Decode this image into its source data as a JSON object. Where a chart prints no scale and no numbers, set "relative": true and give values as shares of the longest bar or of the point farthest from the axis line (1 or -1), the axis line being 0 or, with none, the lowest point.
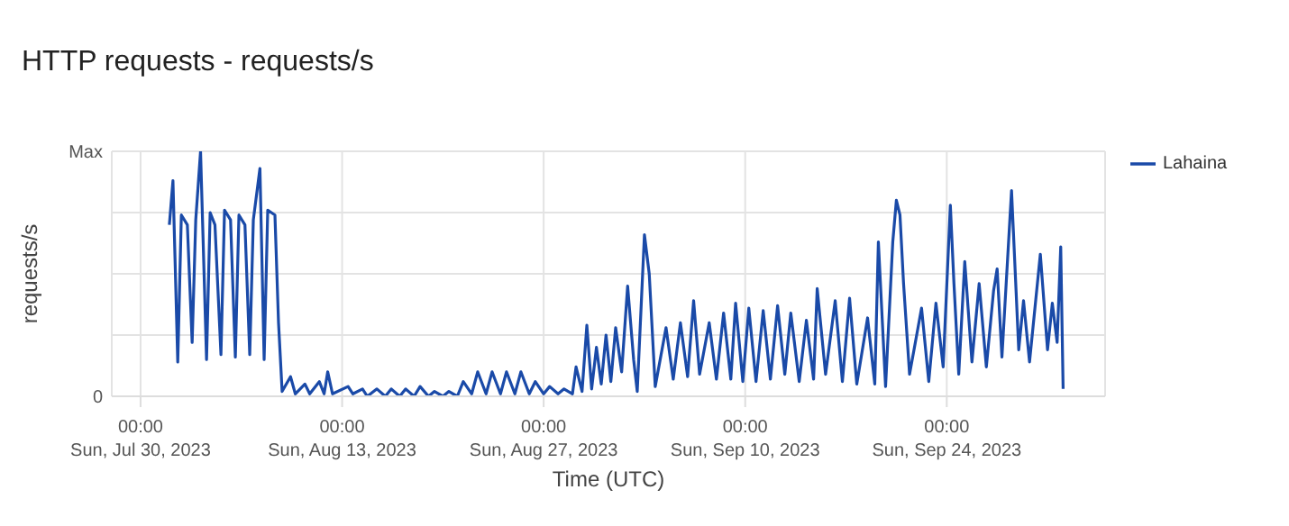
{
  "chart_data": {
    "type": "line",
    "title": "HTTP requests - requests/s",
    "xlabel": "Time (UTC)",
    "ylabel": "requests/s",
    "x": [
      "2023-08-01T00:00",
      "2023-08-01T06:00",
      "2023-08-01T14:00",
      "2023-08-01T20:00",
      "2023-08-02T06:00",
      "2023-08-02T14:00",
      "2023-08-02T20:00",
      "2023-08-03T04:00",
      "2023-08-03T14:00",
      "2023-08-03T20:00",
      "2023-08-04T04:00",
      "2023-08-04T14:00",
      "2023-08-04T20:00",
      "2023-08-05T06:00",
      "2023-08-05T14:00",
      "2023-08-05T20:00",
      "2023-08-06T06:00",
      "2023-08-06T14:00",
      "2023-08-06T20:00",
      "2023-08-07T07:00",
      "2023-08-07T14:00",
      "2023-08-07T20:00",
      "2023-08-08T08:00",
      "2023-08-08T14:00",
      "2023-08-08T20:00",
      "2023-08-09T10:00",
      "2023-08-09T18:00",
      "2023-08-10T10:00",
      "2023-08-10T18:00",
      "2023-08-11T10:00",
      "2023-08-11T18:00",
      "2023-08-12T00:00",
      "2023-08-12T08:00",
      "2023-08-13T10:00",
      "2023-08-13T18:00",
      "2023-08-14T10:00",
      "2023-08-14T18:00",
      "2023-08-15T10:00",
      "2023-08-16T00:00",
      "2023-08-16T10:00",
      "2023-08-17T00:00",
      "2023-08-17T10:00",
      "2023-08-18T00:00",
      "2023-08-18T10:00",
      "2023-08-19T00:00",
      "2023-08-19T10:00",
      "2023-08-20T00:00",
      "2023-08-20T10:00",
      "2023-08-21T00:00",
      "2023-08-21T10:00",
      "2023-08-22T00:00",
      "2023-08-22T10:00",
      "2023-08-23T00:00",
      "2023-08-23T10:00",
      "2023-08-24T00:00",
      "2023-08-24T10:00",
      "2023-08-25T00:00",
      "2023-08-25T10:00",
      "2023-08-26T00:00",
      "2023-08-26T10:00",
      "2023-08-27T00:00",
      "2023-08-27T10:00",
      "2023-08-28T00:00",
      "2023-08-28T10:00",
      "2023-08-29T00:00",
      "2023-08-29T06:00",
      "2023-08-29T16:00",
      "2023-08-30T00:00",
      "2023-08-30T08:00",
      "2023-08-30T16:00",
      "2023-08-31T00:00",
      "2023-08-31T08:00",
      "2023-08-31T16:00",
      "2023-09-01T00:00",
      "2023-09-01T10:00",
      "2023-09-01T20:00",
      "2023-09-02T06:00",
      "2023-09-02T12:00",
      "2023-09-03T00:00",
      "2023-09-03T08:00",
      "2023-09-03T18:00",
      "2023-09-04T12:00",
      "2023-09-05T00:00",
      "2023-09-05T12:00",
      "2023-09-06T00:00",
      "2023-09-06T10:00",
      "2023-09-06T20:00",
      "2023-09-07T12:00",
      "2023-09-08T00:00",
      "2023-09-08T12:00",
      "2023-09-09T00:00",
      "2023-09-09T08:00",
      "2023-09-09T20:00",
      "2023-09-10T06:00",
      "2023-09-10T18:00",
      "2023-09-11T06:00",
      "2023-09-11T18:00",
      "2023-09-12T06:00",
      "2023-09-12T18:00",
      "2023-09-13T04:00",
      "2023-09-13T18:00",
      "2023-09-14T06:00",
      "2023-09-14T18:00",
      "2023-09-15T00:00",
      "2023-09-15T14:00",
      "2023-09-16T06:00",
      "2023-09-16T18:00",
      "2023-09-17T06:00",
      "2023-09-17T18:00",
      "2023-09-18T12:00",
      "2023-09-19T00:00",
      "2023-09-19T06:00",
      "2023-09-19T18:00",
      "2023-09-20T06:00",
      "2023-09-20T12:00",
      "2023-09-20T18:00",
      "2023-09-21T00:00",
      "2023-09-21T10:00",
      "2023-09-22T06:00",
      "2023-09-22T18:00",
      "2023-09-23T06:00",
      "2023-09-23T18:00",
      "2023-09-24T06:00",
      "2023-09-24T12:00",
      "2023-09-24T20:00",
      "2023-09-25T06:00",
      "2023-09-25T18:00",
      "2023-09-26T06:00",
      "2023-09-26T18:00",
      "2023-09-27T06:00",
      "2023-09-27T12:00",
      "2023-09-27T20:00",
      "2023-09-28T12:00",
      "2023-09-29T00:00",
      "2023-09-29T08:00",
      "2023-09-29T18:00",
      "2023-09-30T12:00",
      "2023-10-01T00:00",
      "2023-10-01T08:00",
      "2023-10-01T16:00",
      "2023-10-01T22:00",
      "2023-10-02T02:00"
    ],
    "series": [
      {
        "name": "Lahaina",
        "color": "#1a4aa8",
        "values": [
          0.7,
          0.88,
          0.14,
          0.74,
          0.7,
          0.22,
          0.72,
          1,
          0.15,
          0.75,
          0.7,
          0.17,
          0.76,
          0.72,
          0.16,
          0.74,
          0.7,
          0.17,
          0.72,
          0.93,
          0.15,
          0.76,
          0.74,
          0.3,
          0.02,
          0.08,
          0.01,
          0.05,
          0.01,
          0.06,
          0.01,
          0.1,
          0.01,
          0.04,
          0.01,
          0.03,
          0.0,
          0.03,
          0.0,
          0.03,
          0.0,
          0.03,
          0.0,
          0.04,
          0.0,
          0.02,
          0.0,
          0.02,
          0.0,
          0.06,
          0.01,
          0.1,
          0.01,
          0.1,
          0.01,
          0.1,
          0.01,
          0.1,
          0.01,
          0.06,
          0.01,
          0.04,
          0.01,
          0.03,
          0.01,
          0.12,
          0.02,
          0.29,
          0.03,
          0.2,
          0.05,
          0.25,
          0.06,
          0.28,
          0.1,
          0.45,
          0.15,
          0.02,
          0.66,
          0.5,
          0.04,
          0.28,
          0.07,
          0.3,
          0.08,
          0.39,
          0.09,
          0.3,
          0.07,
          0.34,
          0.07,
          0.38,
          0.06,
          0.36,
          0.06,
          0.35,
          0.07,
          0.37,
          0.09,
          0.34,
          0.06,
          0.31,
          0.07,
          0.44,
          0.09,
          0.39,
          0.06,
          0.4,
          0.05,
          0.32,
          0.05,
          0.63,
          0.04,
          0.63,
          0.8,
          0.74,
          0.46,
          0.09,
          0.36,
          0.06,
          0.38,
          0.12,
          0.78,
          0.46,
          0.09,
          0.55,
          0.14,
          0.46,
          0.12,
          0.43,
          0.52,
          0.16,
          0.84,
          0.19,
          0.39,
          0.14,
          0.58,
          0.19,
          0.38,
          0.22,
          0.61,
          0.03
        ]
      }
    ],
    "xlim": [
      "2023-07-28",
      "2023-10-05"
    ],
    "xticks": [
      {
        "value": "2023-07-30",
        "label": "00:00\nSun, Jul 30, 2023"
      },
      {
        "value": "2023-08-13",
        "label": "00:00\nSun, Aug 13, 2023"
      },
      {
        "value": "2023-08-27",
        "label": "00:00\nSun, Aug 27, 2023"
      },
      {
        "value": "2023-09-10",
        "label": "00:00\nSun, Sep 10, 2023"
      },
      {
        "value": "2023-09-24",
        "label": "00:00\nSun, Sep 24, 2023"
      }
    ],
    "relative": true,
    "annotations": [
      "0",
      "Max"
    ],
    "grid": true,
    "legend": "top right",
    "marker": "none",
    "line_style": "solid"
  }
}
